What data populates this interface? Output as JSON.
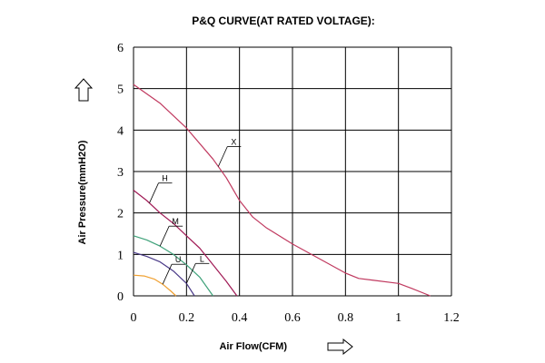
{
  "chart_data": {
    "type": "line",
    "title": "P&Q CURVE(AT RATED VOLTAGE):",
    "xlabel": "Air Flow(CFM)",
    "ylabel": "Air Pressure(mmH2O)",
    "xlim": [
      0,
      1.2
    ],
    "ylim": [
      0,
      6
    ],
    "x_ticks": [
      0,
      0.2,
      0.4,
      0.6,
      0.8,
      1,
      1.2
    ],
    "x_tick_labels": [
      "0",
      "0.2",
      "0.4",
      "0.6",
      "0.8",
      "1",
      "1.2"
    ],
    "y_ticks": [
      0,
      1,
      2,
      3,
      4,
      5,
      6
    ],
    "y_tick_labels": [
      "0",
      "1",
      "2",
      "3",
      "4",
      "5",
      "6"
    ],
    "grid": true,
    "series": [
      {
        "name": "X",
        "color": "#c0395f",
        "x": [
          0,
          0.1,
          0.2,
          0.3,
          0.35,
          0.4,
          0.45,
          0.5,
          0.6,
          0.7,
          0.8,
          0.85,
          0.9,
          1.0,
          1.05,
          1.12
        ],
        "y": [
          5.1,
          4.65,
          4.05,
          3.3,
          2.85,
          2.3,
          1.9,
          1.65,
          1.25,
          0.9,
          0.55,
          0.42,
          0.38,
          0.3,
          0.18,
          0.0
        ]
      },
      {
        "name": "H",
        "color": "#a01a55",
        "x": [
          0,
          0.05,
          0.1,
          0.15,
          0.2,
          0.25,
          0.3,
          0.35,
          0.39
        ],
        "y": [
          2.55,
          2.3,
          2.0,
          1.75,
          1.45,
          1.15,
          0.75,
          0.35,
          0.0
        ]
      },
      {
        "name": "M",
        "color": "#3fa27a",
        "x": [
          0,
          0.05,
          0.1,
          0.15,
          0.2,
          0.25,
          0.3
        ],
        "y": [
          1.45,
          1.35,
          1.2,
          1.0,
          0.75,
          0.45,
          0.0
        ]
      },
      {
        "name": "L",
        "color": "#4a3a88",
        "x": [
          0,
          0.05,
          0.1,
          0.15,
          0.2,
          0.23
        ],
        "y": [
          1.05,
          0.95,
          0.82,
          0.6,
          0.3,
          0.0
        ]
      },
      {
        "name": "U",
        "color": "#f0a030",
        "x": [
          0,
          0.04,
          0.08,
          0.11,
          0.14,
          0.16
        ],
        "y": [
          0.5,
          0.48,
          0.4,
          0.28,
          0.12,
          0.0
        ]
      }
    ],
    "annotations": [
      {
        "text": "X",
        "series": "X",
        "at_x": 0.32
      },
      {
        "text": "H",
        "series": "H",
        "at_x": 0.06
      },
      {
        "text": "M",
        "series": "M",
        "at_x": 0.1
      },
      {
        "text": "U",
        "series": "U",
        "at_x": 0.11
      },
      {
        "text": "L",
        "series": "L",
        "at_x": 0.2
      }
    ]
  }
}
